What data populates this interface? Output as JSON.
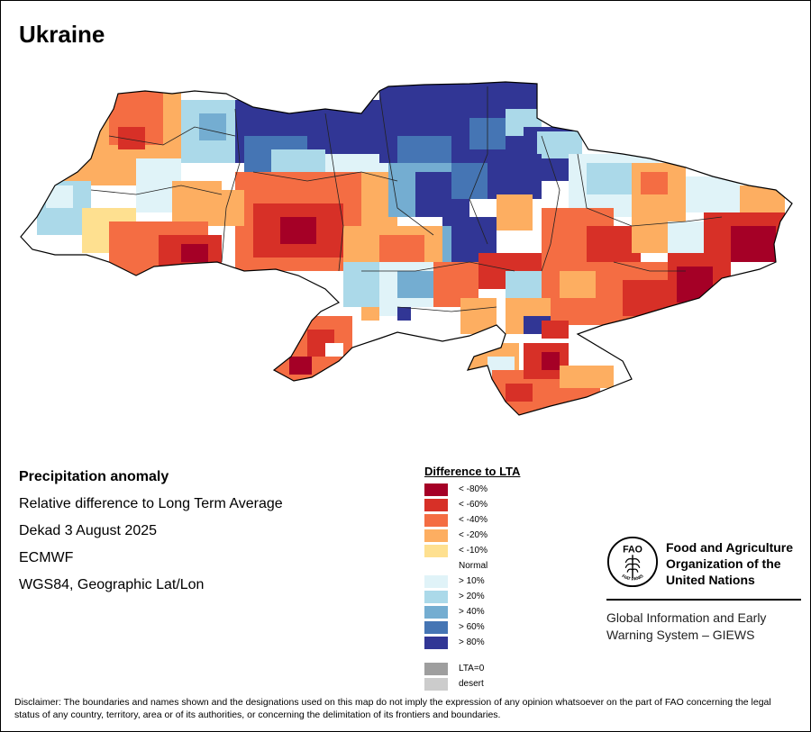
{
  "map": {
    "title": "Ukraine",
    "region": "Ukraine"
  },
  "info": {
    "heading": "Precipitation anomaly",
    "subtitle": "Relative difference to Long Term Average",
    "period": "Dekad 3 August 2025",
    "source": "ECMWF",
    "projection": "WGS84, Geographic Lat/Lon"
  },
  "legend": {
    "title": "Difference to LTA",
    "classes": [
      {
        "label": "< -80%",
        "color": "#a50026"
      },
      {
        "label": "< -60%",
        "color": "#d73027"
      },
      {
        "label": "< -40%",
        "color": "#f46d43"
      },
      {
        "label": "< -20%",
        "color": "#fdae61"
      },
      {
        "label": "< -10%",
        "color": "#fee090"
      },
      {
        "label": "Normal",
        "color": "#ffffff"
      },
      {
        "label": "> 10%",
        "color": "#e0f3f8"
      },
      {
        "label": "> 20%",
        "color": "#abd9e9"
      },
      {
        "label": "> 40%",
        "color": "#74add1"
      },
      {
        "label": "> 60%",
        "color": "#4575b4"
      },
      {
        "label": "> 80%",
        "color": "#313695"
      }
    ],
    "extra": [
      {
        "label": "LTA=0",
        "color": "#9e9e9e"
      },
      {
        "label": "desert",
        "color": "#cccccc"
      }
    ]
  },
  "organization": {
    "name_line1": "Food and Agriculture",
    "name_line2": "Organization of the",
    "name_line3": "United Nations",
    "emblem_text": "FAO",
    "emblem_motto": "FIAT PANIS",
    "system_line1": "Global Information and Early",
    "system_line2": "Warning System – GIEWS"
  },
  "disclaimer": "Disclaimer: The boundaries and names shown and the designations used on this map do not imply the expression of any opinion whatsoever on the part of FAO concerning the legal status of any country, territory, area or of its authorities, or concerning the delimitation of its frontiers and boundaries."
}
